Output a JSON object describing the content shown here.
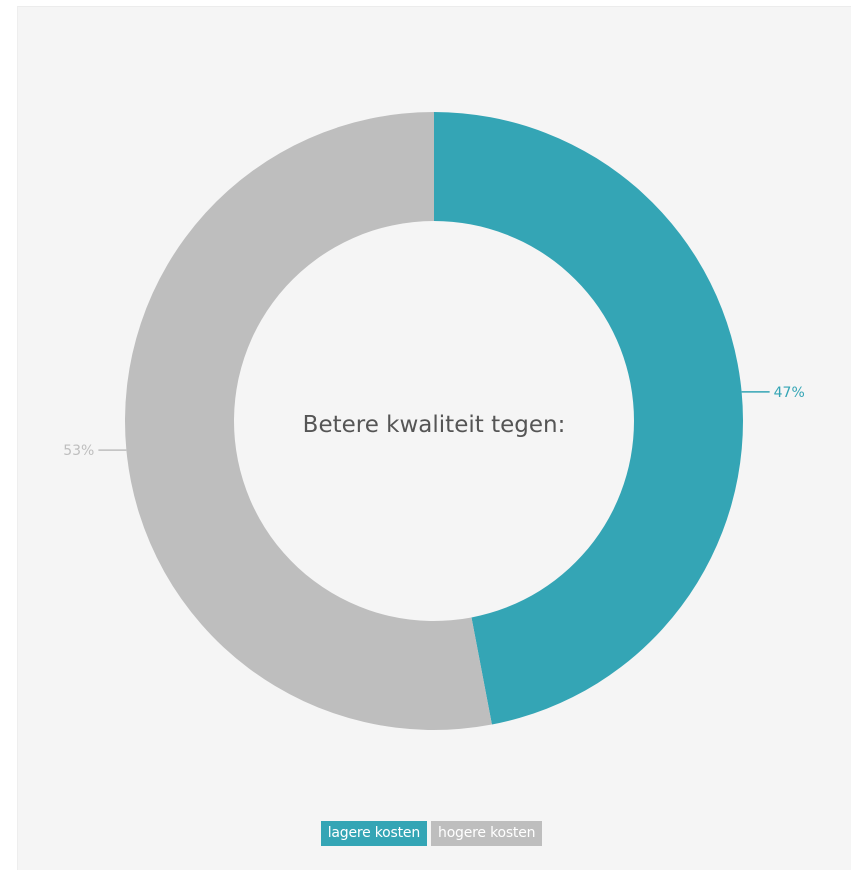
{
  "chart_data": {
    "type": "pie",
    "variant": "donut",
    "center_label": "Betere kwaliteit tegen:",
    "slices": [
      {
        "name": "lagere kosten",
        "value": 47,
        "label": "47%",
        "color": "#34a5b5"
      },
      {
        "name": "hogere kosten",
        "value": 53,
        "label": "53%",
        "color": "#bebebe"
      }
    ],
    "legend_placement": "bottom-center"
  },
  "colors": {
    "background": "#f5f5f5",
    "center_text": "#555555"
  }
}
